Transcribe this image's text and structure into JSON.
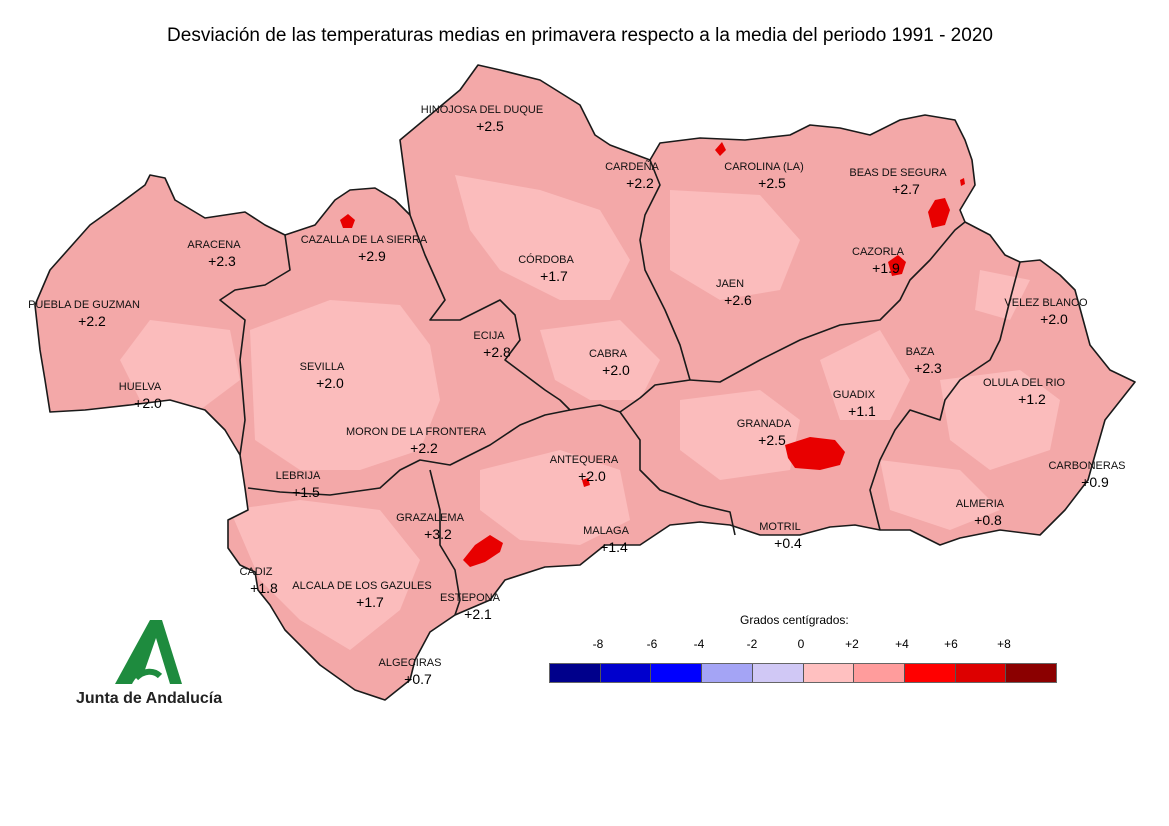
{
  "title": "Desviación de las temperaturas medias en primavera respecto a la media del periodo 1991 - 2020",
  "colors": {
    "base": "#f3a8a8",
    "light": "#fbbcbc",
    "hot": "#e80000",
    "border": "#1a1a1a",
    "logo_green": "#1e8b3e"
  },
  "stations": [
    {
      "name": "HINOJOSA DEL DUQUE",
      "value": "+2.5"
    },
    {
      "name": "CARDEÑA",
      "value": "+2.2"
    },
    {
      "name": "CAROLINA (LA)",
      "value": "+2.5"
    },
    {
      "name": "BEAS DE SEGURA",
      "value": "+2.7"
    },
    {
      "name": "ARACENA",
      "value": "+2.3"
    },
    {
      "name": "CAZALLA DE LA SIERRA",
      "value": "+2.9"
    },
    {
      "name": "CÓRDOBA",
      "value": "+1.7"
    },
    {
      "name": "CAZORLA",
      "value": "+1.9"
    },
    {
      "name": "PUEBLA DE GUZMAN",
      "value": "+2.2"
    },
    {
      "name": "JAEN",
      "value": "+2.6"
    },
    {
      "name": "VELEZ BLANCO",
      "value": "+2.0"
    },
    {
      "name": "ECIJA",
      "value": "+2.8"
    },
    {
      "name": "SEVILLA",
      "value": "+2.0"
    },
    {
      "name": "CABRA",
      "value": "+2.0"
    },
    {
      "name": "BAZA",
      "value": "+2.3"
    },
    {
      "name": "HUELVA",
      "value": "+2.0"
    },
    {
      "name": "GUADIX",
      "value": "+1.1"
    },
    {
      "name": "OLULA DEL RIO",
      "value": "+1.2"
    },
    {
      "name": "GRANADA",
      "value": "+2.5"
    },
    {
      "name": "MORON DE LA FRONTERA",
      "value": "+2.2"
    },
    {
      "name": "ANTEQUERA",
      "value": "+2.0"
    },
    {
      "name": "CARBONERAS",
      "value": "+0.9"
    },
    {
      "name": "LEBRIJA",
      "value": "+1.5"
    },
    {
      "name": "ALMERIA",
      "value": "+0.8"
    },
    {
      "name": "GRAZALEMA",
      "value": "+3.2"
    },
    {
      "name": "MALAGA",
      "value": "+1.4"
    },
    {
      "name": "MOTRIL",
      "value": "+0.4"
    },
    {
      "name": "CADIZ",
      "value": "+1.8"
    },
    {
      "name": "ALCALA DE LOS GAZULES",
      "value": "+1.7"
    },
    {
      "name": "ESTEPONA",
      "value": "+2.1"
    },
    {
      "name": "ALGECIRAS",
      "value": "+0.7"
    }
  ],
  "legend": {
    "title": "Grados centígrados:",
    "ticks": [
      "-8",
      "-6",
      "-4",
      "-2",
      "0",
      "+2",
      "+4",
      "+6",
      "+8"
    ],
    "colors": [
      "#00008b",
      "#0000cd",
      "#0000ff",
      "#a4a4f5",
      "#d0c8f5",
      "#ffc0c0",
      "#ff9c9c",
      "#ff0000",
      "#dd0000",
      "#8b0000"
    ]
  },
  "logo": {
    "text": "Junta de Andalucía",
    "icon": "junta-andalucia-logo"
  }
}
